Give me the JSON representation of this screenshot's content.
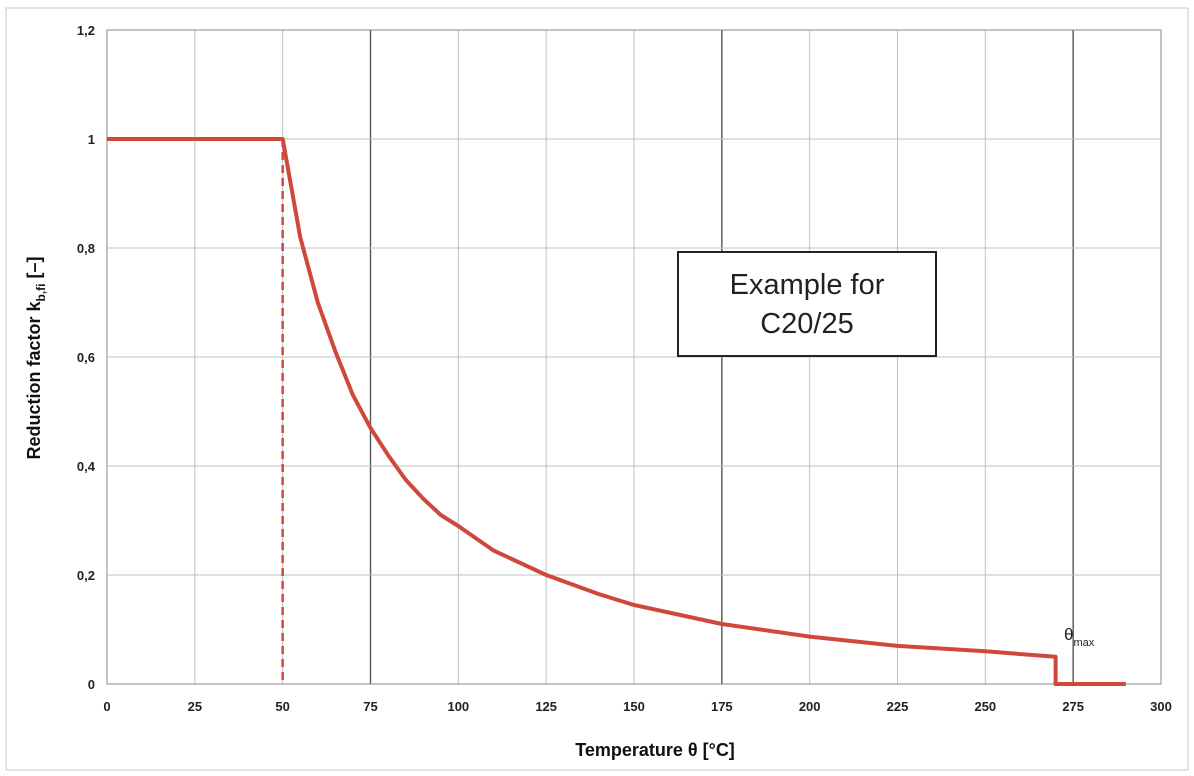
{
  "chart_data": {
    "type": "line",
    "title": "",
    "xlabel": "Temperature θ [°C]",
    "ylabel": "Reduction factor k",
    "ylabel_subscript": "b,fi",
    "ylabel_suffix": " [–]",
    "xlim": [
      0,
      300
    ],
    "ylim": [
      0,
      1.2
    ],
    "x_ticks": [
      0,
      25,
      50,
      75,
      100,
      125,
      150,
      175,
      200,
      225,
      250,
      275,
      300
    ],
    "x_tick_labels": [
      "0",
      "25",
      "50",
      "75",
      "100",
      "125",
      "150",
      "175",
      "200",
      "225",
      "250",
      "275",
      "300"
    ],
    "y_ticks": [
      0,
      0.2,
      0.4,
      0.6,
      0.8,
      1.0,
      1.2
    ],
    "y_tick_labels": [
      "0",
      "0,2",
      "0,4",
      "0,6",
      "0,8",
      "1",
      "1,2"
    ],
    "grid": true,
    "series": [
      {
        "color": "#d0473c",
        "x": [
          0,
          50,
          55,
          60,
          65,
          70,
          75,
          80,
          85,
          90,
          95,
          100,
          110,
          125,
          140,
          150,
          175,
          200,
          225,
          250,
          270,
          270,
          290
        ],
        "y": [
          1.0,
          1.0,
          0.82,
          0.7,
          0.61,
          0.53,
          0.47,
          0.42,
          0.375,
          0.34,
          0.31,
          0.29,
          0.245,
          0.2,
          0.165,
          0.145,
          0.11,
          0.087,
          0.07,
          0.06,
          0.05,
          0.0,
          0.0
        ]
      }
    ],
    "reference_line": {
      "x": 50,
      "y_from": 0,
      "y_to": 1.0,
      "style": "dashed",
      "color": "#d0473c"
    },
    "annotations": [
      {
        "text_lines": [
          "Example for",
          "C20/25"
        ],
        "boxed": true
      },
      {
        "text": "θ",
        "subscript": "max",
        "x": 270,
        "y": 0.05
      }
    ]
  }
}
